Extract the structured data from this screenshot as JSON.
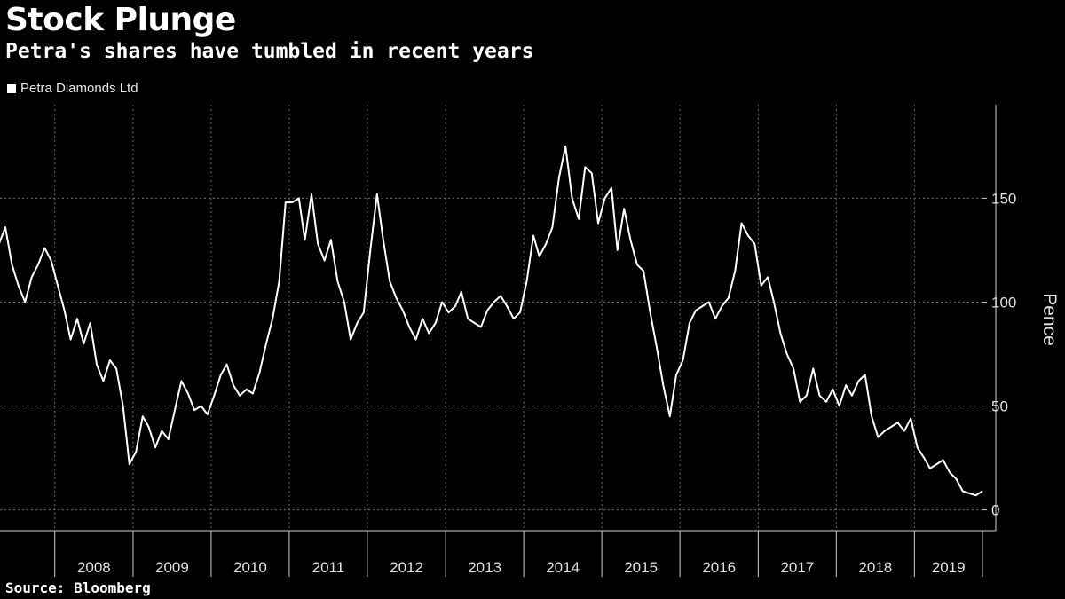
{
  "title": "Stock Plunge",
  "subtitle": "Petra's shares have tumbled in recent years",
  "source": "Source: Bloomberg",
  "colors": {
    "background": "#000000",
    "line": "#ffffff",
    "grid": "#6e6e6e"
  },
  "chart_data": {
    "type": "line",
    "title": "Stock Plunge",
    "subtitle": "Petra's shares have tumbled in recent years",
    "ylabel": "Pence",
    "xlabel": "",
    "y_axis_position": "right",
    "ylim": [
      -10,
      195
    ],
    "yticks": [
      0,
      50,
      100,
      150
    ],
    "x_range": [
      "2007-04-20",
      "2019-11-15"
    ],
    "x_tick_labels": [
      "2008",
      "2009",
      "2010",
      "2011",
      "2012",
      "2013",
      "2014",
      "2015",
      "2016",
      "2017",
      "2018",
      "2019"
    ],
    "grid": true,
    "legend": "top-left",
    "series": [
      {
        "name": "Petra Diamonds Ltd",
        "x": [
          "2007-04",
          "2007-05",
          "2007-06",
          "2007-07",
          "2007-08",
          "2007-09",
          "2007-10",
          "2007-11",
          "2007-12",
          "2008-01",
          "2008-02",
          "2008-03",
          "2008-04",
          "2008-05",
          "2008-06",
          "2008-07",
          "2008-08",
          "2008-09",
          "2008-10",
          "2008-11",
          "2008-12",
          "2009-01",
          "2009-02",
          "2009-03",
          "2009-04",
          "2009-05",
          "2009-06",
          "2009-07",
          "2009-08",
          "2009-09",
          "2009-10",
          "2009-11",
          "2009-12",
          "2010-01",
          "2010-02",
          "2010-03",
          "2010-04",
          "2010-05",
          "2010-06",
          "2010-07",
          "2010-08",
          "2010-09",
          "2010-10",
          "2010-11",
          "2010-12",
          "2011-01",
          "2011-02",
          "2011-03",
          "2011-04",
          "2011-05",
          "2011-06",
          "2011-07",
          "2011-08",
          "2011-09",
          "2011-10",
          "2011-11",
          "2011-12",
          "2012-01",
          "2012-02",
          "2012-03",
          "2012-04",
          "2012-05",
          "2012-06",
          "2012-07",
          "2012-08",
          "2012-09",
          "2012-10",
          "2012-11",
          "2012-12",
          "2013-01",
          "2013-02",
          "2013-03",
          "2013-04",
          "2013-05",
          "2013-06",
          "2013-07",
          "2013-08",
          "2013-09",
          "2013-10",
          "2013-11",
          "2013-12",
          "2014-01",
          "2014-02",
          "2014-03",
          "2014-04",
          "2014-05",
          "2014-06",
          "2014-07",
          "2014-08",
          "2014-09",
          "2014-10",
          "2014-11",
          "2014-12",
          "2015-01",
          "2015-02",
          "2015-03",
          "2015-04",
          "2015-05",
          "2015-06",
          "2015-07",
          "2015-08",
          "2015-09",
          "2015-10",
          "2015-11",
          "2015-12",
          "2016-01",
          "2016-02",
          "2016-03",
          "2016-04",
          "2016-05",
          "2016-06",
          "2016-07",
          "2016-08",
          "2016-09",
          "2016-10",
          "2016-11",
          "2016-12",
          "2017-01",
          "2017-02",
          "2017-03",
          "2017-04",
          "2017-05",
          "2017-06",
          "2017-07",
          "2017-08",
          "2017-09",
          "2017-10",
          "2017-11",
          "2017-12",
          "2018-01",
          "2018-02",
          "2018-03",
          "2018-04",
          "2018-05",
          "2018-06",
          "2018-07",
          "2018-08",
          "2018-09",
          "2018-10",
          "2018-11",
          "2018-12",
          "2019-01",
          "2019-02",
          "2019-03",
          "2019-04",
          "2019-05",
          "2019-06",
          "2019-07",
          "2019-08",
          "2019-09",
          "2019-10",
          "2019-11"
        ],
        "y": [
          128,
          136,
          118,
          108,
          100,
          112,
          118,
          126,
          120,
          108,
          96,
          82,
          92,
          80,
          90,
          70,
          62,
          72,
          68,
          50,
          22,
          28,
          45,
          40,
          30,
          38,
          34,
          48,
          62,
          56,
          48,
          50,
          46,
          55,
          65,
          70,
          60,
          55,
          58,
          56,
          66,
          80,
          92,
          110,
          148,
          148,
          150,
          130,
          152,
          128,
          120,
          130,
          110,
          100,
          82,
          90,
          95,
          125,
          152,
          130,
          110,
          102,
          96,
          88,
          82,
          92,
          85,
          90,
          100,
          95,
          98,
          105,
          92,
          90,
          88,
          96,
          100,
          103,
          98,
          92,
          95,
          110,
          132,
          122,
          128,
          136,
          160,
          175,
          150,
          140,
          165,
          162,
          138,
          150,
          155,
          125,
          145,
          130,
          118,
          115,
          95,
          78,
          60,
          45,
          65,
          72,
          90,
          96,
          98,
          100,
          92,
          98,
          102,
          115,
          138,
          132,
          128,
          108,
          112,
          100,
          85,
          75,
          68,
          52,
          55,
          68,
          55,
          52,
          58,
          50,
          60,
          55,
          62,
          65,
          45,
          35,
          38,
          40,
          42,
          38,
          44,
          30,
          25,
          20,
          22,
          24,
          18,
          15,
          9,
          8,
          7,
          9
        ]
      }
    ]
  }
}
